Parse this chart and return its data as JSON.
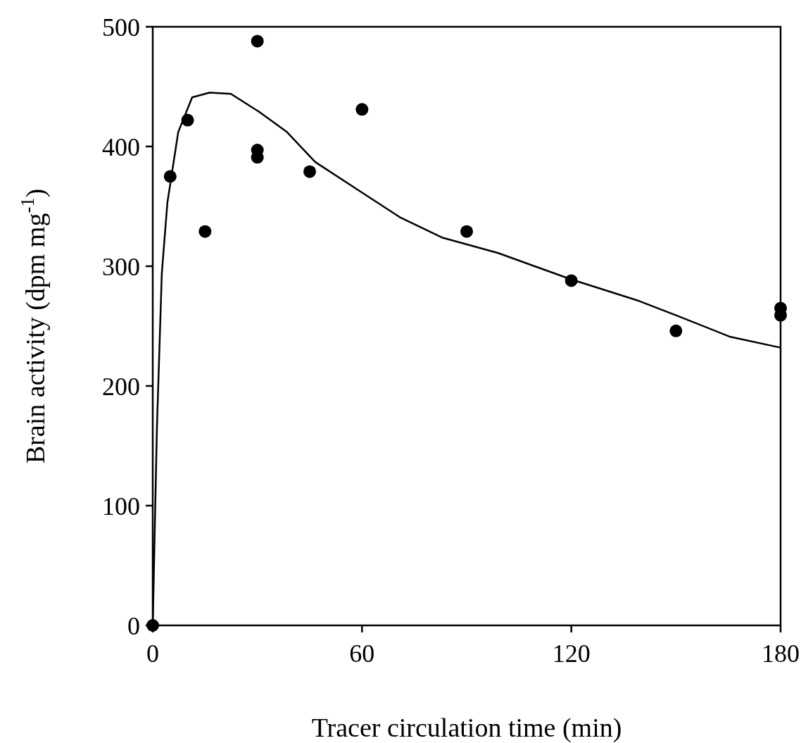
{
  "chart_data": {
    "type": "scatter",
    "xlabel": "Tracer circulation time (min)",
    "ylabel": "Brain activity (dpm mg$^{-1}$)",
    "xlim": [
      0,
      180
    ],
    "xticks": [
      0,
      60,
      120,
      180
    ],
    "ylim": [
      0,
      500
    ],
    "yticks": [
      0,
      100,
      200,
      300,
      400,
      500
    ],
    "grid": false,
    "series": [
      {
        "marker": "circle",
        "color": "#000000",
        "x": [
          0,
          5,
          10,
          15,
          30,
          30,
          30,
          45,
          60,
          90,
          120,
          150,
          180,
          180
        ],
        "values": [
          0,
          375,
          422,
          329,
          488,
          397,
          391,
          379,
          431,
          329,
          288,
          246,
          265,
          259
        ]
      },
      {
        "type": "line",
        "marker": "none",
        "line_style": "solid",
        "color": "#000000",
        "x": [
          0,
          1.2,
          2.6,
          4.2,
          7.3,
          11.3,
          16.3,
          22.4,
          30.5,
          38.5,
          46.6,
          58.7,
          70.8,
          82.9,
          99,
          120,
          139.4,
          150,
          165.6,
          180
        ],
        "values": [
          0,
          165,
          294,
          353,
          412,
          441,
          445,
          444,
          429,
          412,
          387,
          364,
          341,
          324,
          311,
          289,
          271,
          259,
          241,
          232
        ]
      }
    ]
  }
}
